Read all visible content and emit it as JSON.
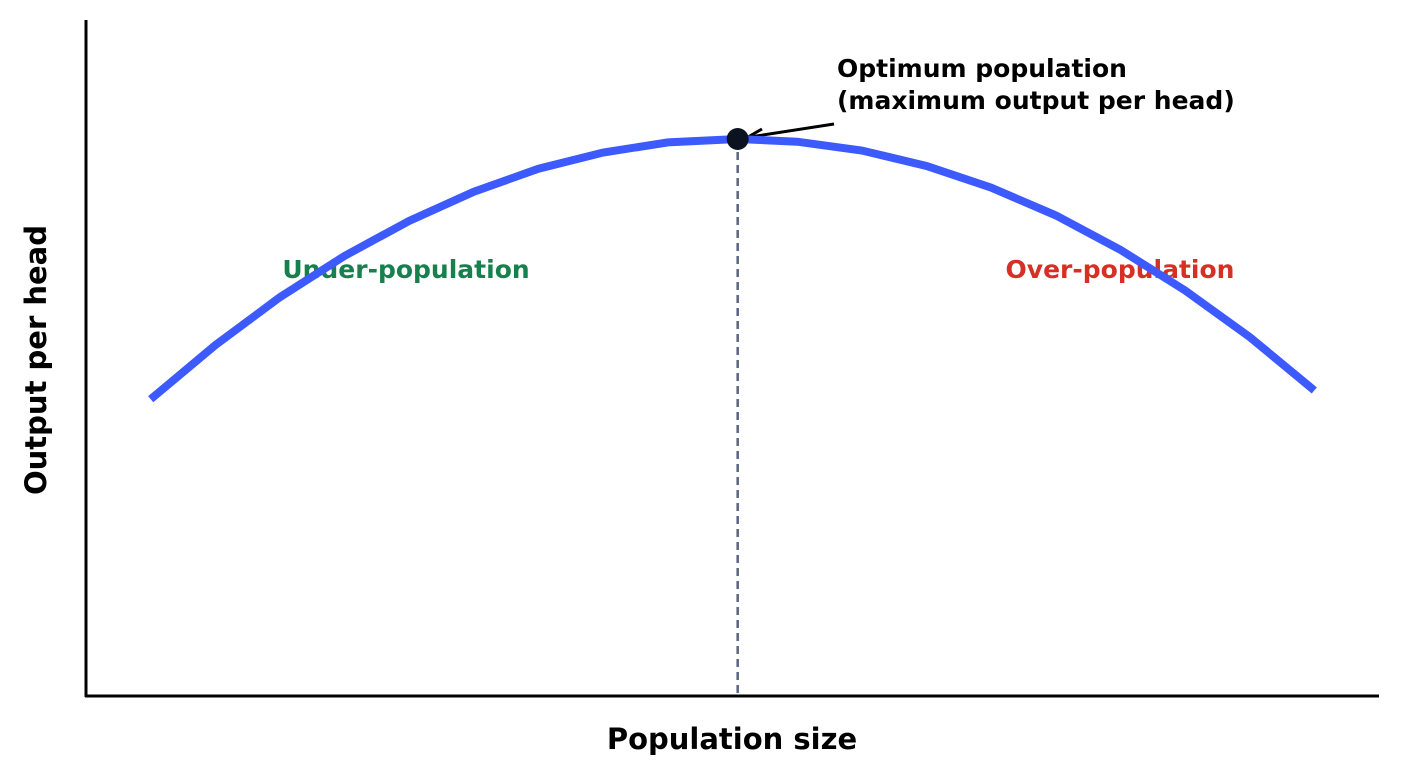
{
  "chart_data": {
    "type": "line",
    "x_label": "Population size",
    "y_label": "Output per head",
    "x": [
      5,
      10,
      15,
      20,
      25,
      30,
      35,
      40,
      45,
      50.4,
      55,
      60,
      65,
      70,
      75,
      80,
      85,
      90,
      95
    ],
    "values": [
      43.9,
      51.9,
      59.0,
      65.1,
      70.3,
      74.6,
      78.0,
      80.4,
      81.9,
      82.4,
      82.0,
      80.7,
      78.4,
      75.2,
      71.1,
      66.0,
      60.0,
      53.1,
      45.2
    ],
    "color": "#3d5afe",
    "xlim": [
      0,
      100
    ],
    "ylim": [
      0,
      100
    ],
    "optimum_annotation": [
      "Optimum population",
      "(maximum output per head)"
    ],
    "region_labels": [
      {
        "text": "Under-population",
        "color": "#17804d"
      },
      {
        "text": "Over-population",
        "color": "#d63026"
      }
    ]
  }
}
